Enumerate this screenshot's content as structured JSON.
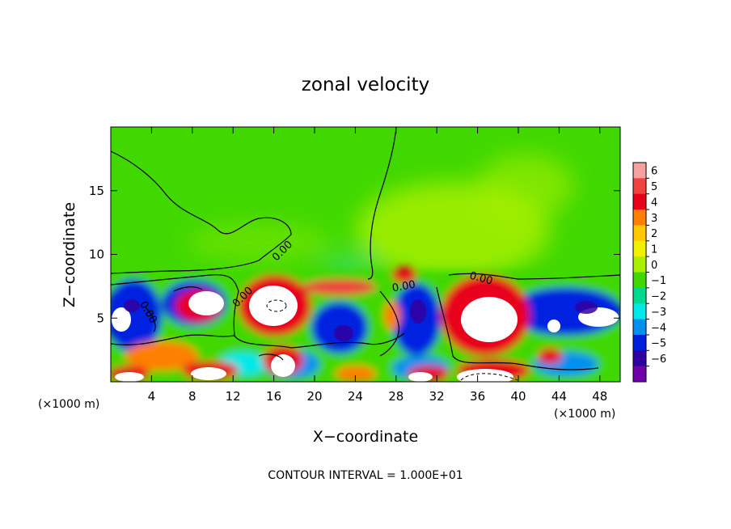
{
  "chart_data": {
    "type": "heatmap",
    "title": "zonal velocity",
    "xlabel": "X−coordinate",
    "ylabel": "Z−coordinate",
    "x_unit_left": "(×1000 m)",
    "x_unit_right": "(×1000 m)",
    "footer": "CONTOUR INTERVAL = 1.000E+01",
    "xlim": [
      0,
      50
    ],
    "ylim": [
      0,
      20
    ],
    "x_ticks": [
      4,
      8,
      12,
      16,
      20,
      24,
      28,
      32,
      36,
      40,
      44,
      48
    ],
    "y_ticks": [
      5,
      10,
      15
    ],
    "contour_labels": [
      "0.00",
      "0.00",
      "0.00",
      "0.00",
      "0.00"
    ],
    "colorbar": {
      "levels": [
        6,
        5,
        4,
        3,
        2,
        1,
        0,
        -1,
        -2,
        -3,
        -4,
        -5,
        -6
      ],
      "colors": [
        "#f7a0a0",
        "#f04040",
        "#e8001a",
        "#ff7f00",
        "#ffc800",
        "#f0f000",
        "#a8f000",
        "#40d800",
        "#00d890",
        "#00e8e8",
        "#0090f0",
        "#0020e0",
        "#3000a0",
        "#7000a8"
      ]
    },
    "grid": false
  }
}
